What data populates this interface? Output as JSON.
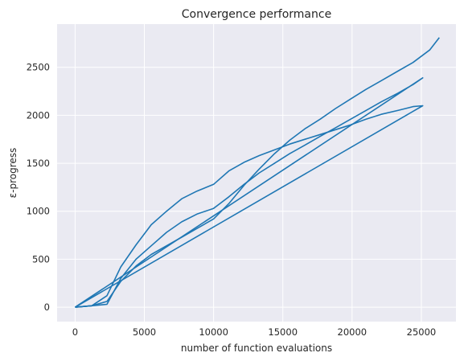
{
  "chart_data": {
    "type": "line",
    "title": "Convergence performance",
    "xlabel": "number of function evaluations",
    "ylabel": "ε-progress",
    "xlim": [
      -1300,
      27500
    ],
    "ylim": [
      -150,
      2950
    ],
    "xticks": [
      0,
      5000,
      10000,
      15000,
      20000,
      25000
    ],
    "yticks": [
      0,
      500,
      1000,
      1500,
      2000,
      2500
    ],
    "grid": true,
    "legend": "none",
    "colors": {
      "background": "#eaeaf2",
      "grid": "#ffffff",
      "line": "#1f77b4",
      "text": "#262626"
    },
    "series": [
      {
        "values": [
          [
            0,
            0
          ],
          [
            1200,
            15
          ],
          [
            2300,
            120
          ],
          [
            3300,
            420
          ],
          [
            4400,
            650
          ],
          [
            5500,
            860
          ],
          [
            6600,
            1000
          ],
          [
            7700,
            1130
          ],
          [
            8800,
            1210
          ],
          [
            10000,
            1280
          ],
          [
            11100,
            1420
          ],
          [
            12200,
            1510
          ],
          [
            13300,
            1580
          ],
          [
            14400,
            1640
          ],
          [
            15500,
            1700
          ],
          [
            16600,
            1750
          ],
          [
            17700,
            1800
          ],
          [
            18800,
            1850
          ],
          [
            19900,
            1900
          ],
          [
            21000,
            1960
          ],
          [
            22100,
            2010
          ],
          [
            23300,
            2050
          ],
          [
            24400,
            2090
          ],
          [
            25100,
            2100
          ],
          [
            0,
            0
          ]
        ]
      },
      {
        "values": [
          [
            0,
            0
          ],
          [
            1200,
            15
          ],
          [
            2300,
            30
          ],
          [
            3300,
            300
          ],
          [
            4400,
            500
          ],
          [
            5500,
            640
          ],
          [
            6600,
            780
          ],
          [
            7700,
            890
          ],
          [
            8800,
            970
          ],
          [
            10000,
            1030
          ],
          [
            11100,
            1150
          ],
          [
            12200,
            1280
          ],
          [
            13300,
            1400
          ],
          [
            14400,
            1500
          ],
          [
            15500,
            1600
          ],
          [
            16600,
            1690
          ],
          [
            17700,
            1780
          ],
          [
            18800,
            1870
          ],
          [
            19900,
            1960
          ],
          [
            21000,
            2050
          ],
          [
            22100,
            2140
          ],
          [
            23300,
            2230
          ],
          [
            24400,
            2320
          ],
          [
            25100,
            2390
          ],
          [
            0,
            0
          ]
        ]
      },
      {
        "values": [
          [
            0,
            0
          ],
          [
            1200,
            15
          ],
          [
            2300,
            60
          ],
          [
            3300,
            270
          ],
          [
            4400,
            430
          ],
          [
            5500,
            550
          ],
          [
            6600,
            640
          ],
          [
            7700,
            730
          ],
          [
            8800,
            820
          ],
          [
            10000,
            920
          ],
          [
            11100,
            1080
          ],
          [
            12200,
            1270
          ],
          [
            13300,
            1440
          ],
          [
            14400,
            1600
          ],
          [
            15500,
            1740
          ],
          [
            16600,
            1860
          ],
          [
            17700,
            1960
          ],
          [
            18800,
            2070
          ],
          [
            19900,
            2170
          ],
          [
            21000,
            2270
          ],
          [
            22100,
            2360
          ],
          [
            23300,
            2460
          ],
          [
            24400,
            2550
          ],
          [
            25600,
            2680
          ],
          [
            26300,
            2810
          ]
        ]
      }
    ]
  }
}
